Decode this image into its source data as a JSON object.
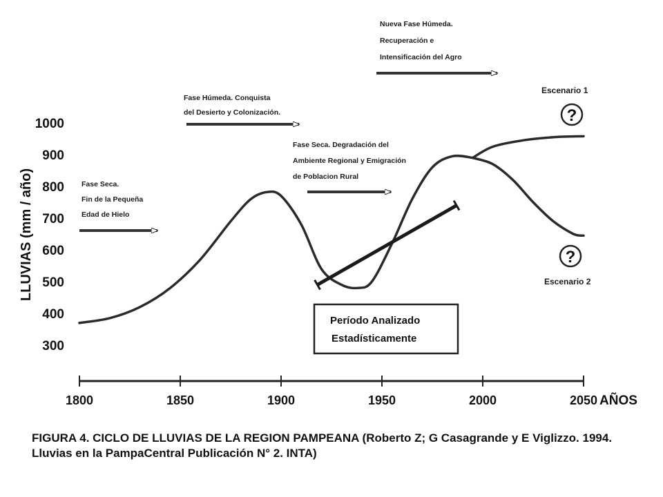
{
  "chart_data": {
    "type": "line",
    "ylabel": "LLUVIAS (mm / año)",
    "xlabel": "AÑOS",
    "ylim": [
      300,
      1000
    ],
    "xlim": [
      1800,
      2050
    ],
    "y_ticks": [
      "1000",
      "900",
      "800",
      "700",
      "600",
      "500",
      "400",
      "300"
    ],
    "y_tick_values": [
      1000,
      900,
      800,
      700,
      600,
      500,
      400,
      300
    ],
    "x_ticks": [
      "1800",
      "1850",
      "1900",
      "1950",
      "2000",
      "2050"
    ],
    "x_tick_values": [
      1800,
      1850,
      1900,
      1950,
      2000,
      2050
    ],
    "series": [
      {
        "x": [
          1800,
          1815,
          1830,
          1845,
          1860,
          1875,
          1885,
          1893,
          1900,
          1910,
          1920,
          1930,
          1938,
          1945,
          1955,
          1965,
          1975,
          1985,
          1995
        ],
        "y": [
          370,
          385,
          420,
          480,
          570,
          690,
          760,
          782,
          770,
          680,
          540,
          490,
          480,
          500,
          620,
          760,
          860,
          895,
          890
        ]
      },
      {
        "x": [
          1995,
          2005,
          2020,
          2035,
          2050
        ],
        "y": [
          890,
          925,
          945,
          955,
          958
        ]
      },
      {
        "x": [
          1995,
          2005,
          2015,
          2025,
          2035,
          2045,
          2050
        ],
        "y": [
          890,
          870,
          820,
          750,
          690,
          650,
          645
        ]
      }
    ],
    "trend_line": {
      "x": [
        1918,
        1987
      ],
      "y": [
        490,
        740
      ]
    },
    "annotations": {
      "phase1": [
        "Fase Seca.",
        "Fin de la Pequeña",
        "Edad de Hielo"
      ],
      "phase2": [
        "Fase Húmeda. Conquista",
        "del Desierto y Colonización."
      ],
      "phase3": [
        "Fase Seca. Degradación del",
        "Ambiente Regional y Emigración",
        "de Poblacion Rural"
      ],
      "phase4": [
        "Nueva Fase Húmeda.",
        "Recuperación e",
        "Intensificación del Agro"
      ],
      "scenario1": "Escenario 1",
      "scenario2": "Escenario 2",
      "question_mark": "?",
      "analysis_box": [
        "Período Analizado",
        "Estadísticamente"
      ]
    }
  },
  "caption": "FIGURA 4. CICLO DE LLUVIAS DE LA REGION PAMPEANA (Roberto Z; G Casagrande y E Viglizzo. 1994. Lluvias en la PampaCentral Publicación N° 2. INTA)"
}
